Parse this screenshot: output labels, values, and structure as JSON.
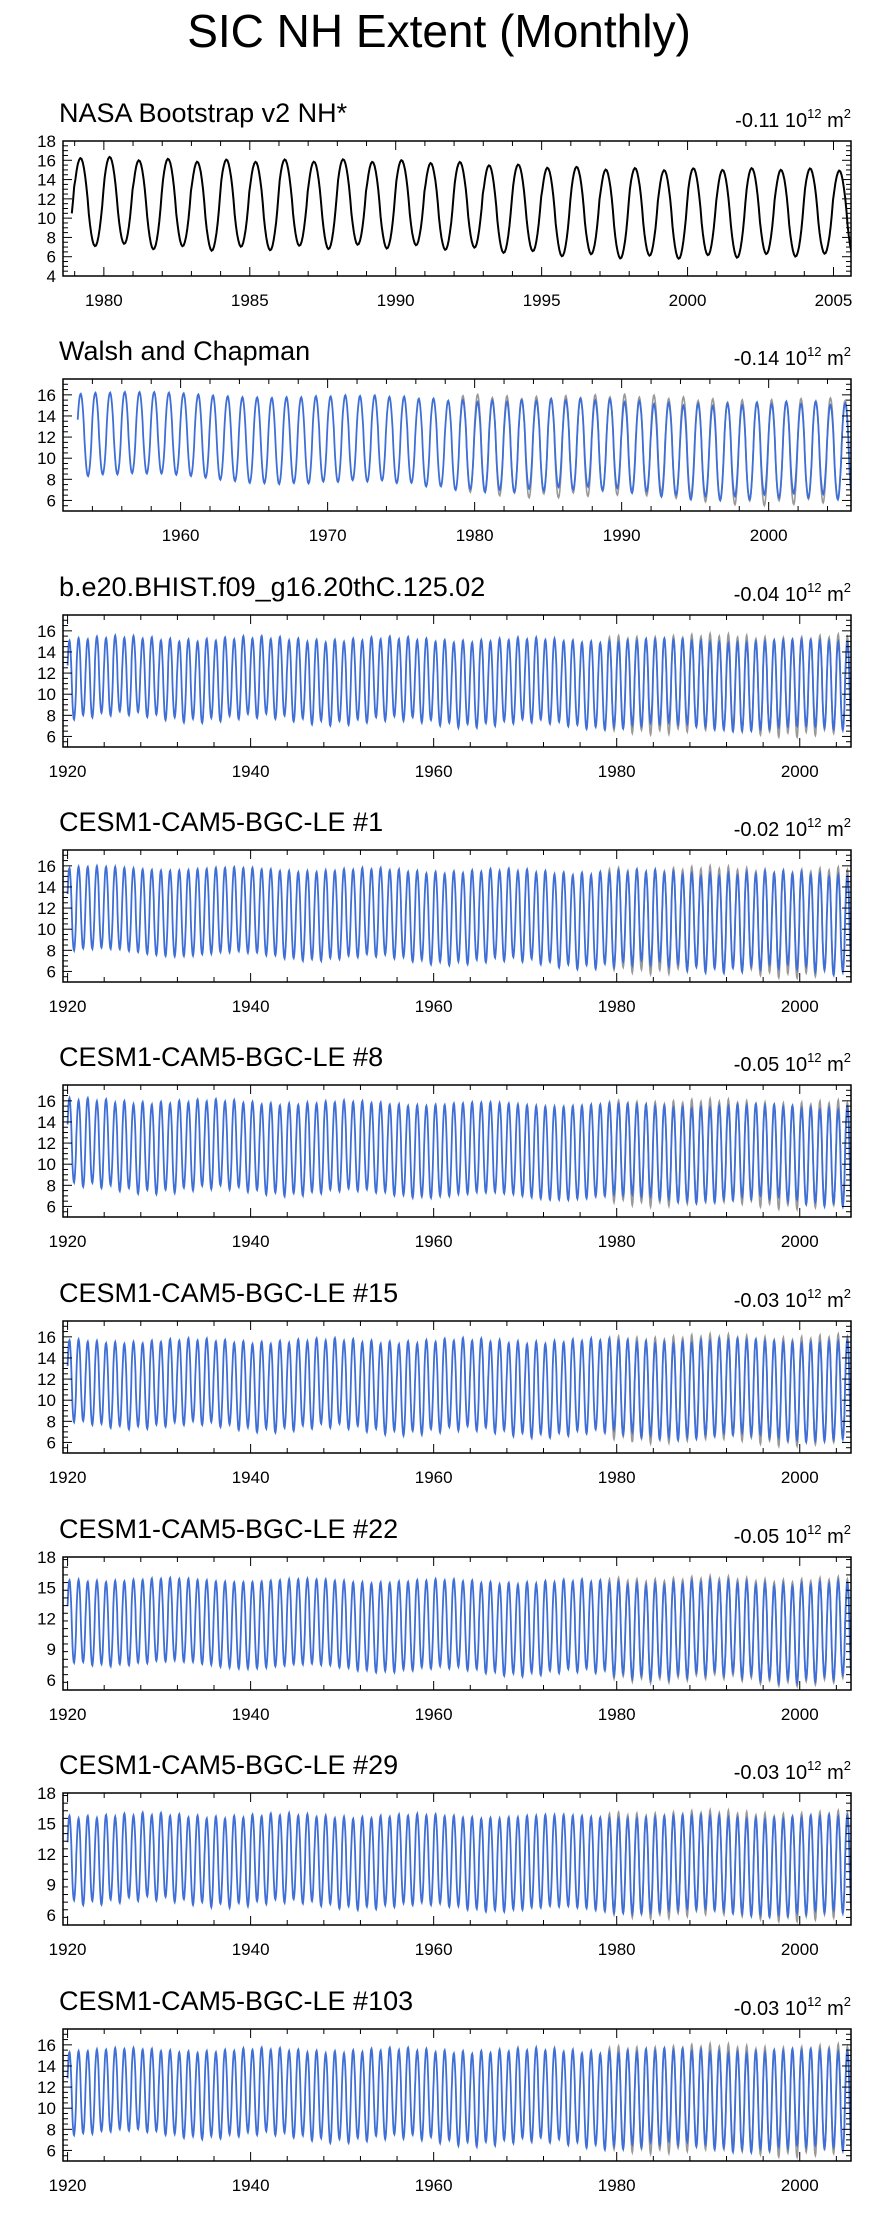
{
  "figure": {
    "title": "SIC NH Extent (Monthly)"
  },
  "style": {
    "model_color": "#3f6fd6",
    "obs_color": "#000000",
    "obs_overlay_color": "#999999"
  },
  "chart_data": [
    {
      "type": "line",
      "title": "NASA Bootstrap v2 NH*",
      "trend": "-0.11 10",
      "trend_exp": "12",
      "trend_unit": " m",
      "trend_unit_exp": "2",
      "xlim": [
        1978.6,
        2005.6
      ],
      "xticks": [
        1980,
        1985,
        1990,
        1995,
        2000,
        2005
      ],
      "ylim": [
        4,
        18
      ],
      "yticks": [
        4,
        6,
        8,
        10,
        12,
        14,
        16,
        18
      ],
      "series": [
        {
          "x_start": 1978.9,
          "x_end": 2005.9,
          "max_start": 16.4,
          "max_end": 14.8,
          "min_start": 7.4,
          "min_end": 5.8,
          "style": "obs"
        }
      ]
    },
    {
      "type": "line",
      "title": "Walsh and Chapman",
      "trend": "-0.14 10",
      "trend_exp": "12",
      "trend_unit": " m",
      "trend_unit_exp": "2",
      "xlim": [
        1952,
        2005.6
      ],
      "xticks": [
        1960,
        1970,
        1980,
        1990,
        2000
      ],
      "ylim": [
        5,
        17.5
      ],
      "yticks": [
        6,
        8,
        10,
        12,
        14,
        16
      ],
      "series": [
        {
          "x_start": 1953,
          "x_end": 2005.9,
          "max_start": 16.2,
          "max_end": 15.0,
          "min_start": 8.5,
          "min_end": 6.0,
          "style": "model",
          "obs_overlay": [
            1979,
            2005.9
          ]
        }
      ]
    },
    {
      "type": "line",
      "title": "b.e20.BHIST.f09_g16.20thC.125.02",
      "trend": "-0.04 10",
      "trend_exp": "12",
      "trend_unit": " m",
      "trend_unit_exp": "2",
      "xlim": [
        1919.5,
        2005.6
      ],
      "xticks": [
        1920,
        1940,
        1960,
        1980,
        2000
      ],
      "ylim": [
        5,
        17.5
      ],
      "yticks": [
        6,
        8,
        10,
        12,
        14,
        16
      ],
      "series": [
        {
          "x_start": 1920,
          "x_end": 2005.9,
          "max_start": 15.3,
          "max_end": 15.0,
          "min_start": 8.0,
          "min_end": 6.6,
          "style": "model",
          "obs_overlay": [
            1979,
            2005.9
          ]
        }
      ]
    },
    {
      "type": "line",
      "title": "CESM1-CAM5-BGC-LE #1",
      "trend": "-0.02 10",
      "trend_exp": "12",
      "trend_unit": " m",
      "trend_unit_exp": "2",
      "xlim": [
        1919.5,
        2005.6
      ],
      "xticks": [
        1920,
        1940,
        1960,
        1980,
        2000
      ],
      "ylim": [
        5,
        17.5
      ],
      "yticks": [
        6,
        8,
        10,
        12,
        14,
        16
      ],
      "series": [
        {
          "x_start": 1920,
          "x_end": 2005.9,
          "max_start": 15.8,
          "max_end": 15.2,
          "min_start": 8.0,
          "min_end": 6.0,
          "style": "model",
          "obs_overlay": [
            1979,
            2005.9
          ]
        }
      ]
    },
    {
      "type": "line",
      "title": "CESM1-CAM5-BGC-LE #8",
      "trend": "-0.05 10",
      "trend_exp": "12",
      "trend_unit": " m",
      "trend_unit_exp": "2",
      "xlim": [
        1919.5,
        2005.6
      ],
      "xticks": [
        1920,
        1940,
        1960,
        1980,
        2000
      ],
      "ylim": [
        5,
        17.5
      ],
      "yticks": [
        6,
        8,
        10,
        12,
        14,
        16
      ],
      "series": [
        {
          "x_start": 1920,
          "x_end": 2005.9,
          "max_start": 16.0,
          "max_end": 15.4,
          "min_start": 7.8,
          "min_end": 6.4,
          "style": "model",
          "obs_overlay": [
            1979,
            2005.9
          ]
        }
      ]
    },
    {
      "type": "line",
      "title": "CESM1-CAM5-BGC-LE #15",
      "trend": "-0.03 10",
      "trend_exp": "12",
      "trend_unit": " m",
      "trend_unit_exp": "2",
      "xlim": [
        1919.5,
        2005.6
      ],
      "xticks": [
        1920,
        1940,
        1960,
        1980,
        2000
      ],
      "ylim": [
        5,
        17.5
      ],
      "yticks": [
        6,
        8,
        10,
        12,
        14,
        16
      ],
      "series": [
        {
          "x_start": 1920,
          "x_end": 2005.9,
          "max_start": 15.6,
          "max_end": 15.6,
          "min_start": 7.8,
          "min_end": 6.3,
          "style": "model",
          "obs_overlay": [
            1979,
            2005.9
          ]
        }
      ]
    },
    {
      "type": "line",
      "title": "CESM1-CAM5-BGC-LE #22",
      "trend": "-0.05 10",
      "trend_exp": "12",
      "trend_unit": " m",
      "trend_unit_exp": "2",
      "xlim": [
        1919.5,
        2005.6
      ],
      "xticks": [
        1920,
        1940,
        1960,
        1980,
        2000
      ],
      "ylim": [
        5,
        18
      ],
      "yticks": [
        6,
        9,
        12,
        15,
        18
      ],
      "series": [
        {
          "x_start": 1920,
          "x_end": 2005.9,
          "max_start": 15.8,
          "max_end": 15.4,
          "min_start": 7.8,
          "min_end": 6.0,
          "style": "model",
          "obs_overlay": [
            1979,
            2005.9
          ]
        }
      ]
    },
    {
      "type": "line",
      "title": "CESM1-CAM5-BGC-LE #29",
      "trend": "-0.03 10",
      "trend_exp": "12",
      "trend_unit": " m",
      "trend_unit_exp": "2",
      "xlim": [
        1919.5,
        2005.6
      ],
      "xticks": [
        1920,
        1940,
        1960,
        1980,
        2000
      ],
      "ylim": [
        5,
        18
      ],
      "yticks": [
        6,
        9,
        12,
        15,
        18
      ],
      "series": [
        {
          "x_start": 1920,
          "x_end": 2005.9,
          "max_start": 15.8,
          "max_end": 15.6,
          "min_start": 7.5,
          "min_end": 6.0,
          "style": "model",
          "obs_overlay": [
            1979,
            2005.9
          ]
        }
      ]
    },
    {
      "type": "line",
      "title": "CESM1-CAM5-BGC-LE #103",
      "trend": "-0.03 10",
      "trend_exp": "12",
      "trend_unit": " m",
      "trend_unit_exp": "2",
      "xlim": [
        1919.5,
        2005.6
      ],
      "xticks": [
        1920,
        1940,
        1960,
        1980,
        2000
      ],
      "ylim": [
        5,
        17.5
      ],
      "yticks": [
        6,
        8,
        10,
        12,
        14,
        16
      ],
      "series": [
        {
          "x_start": 1920,
          "x_end": 2005.9,
          "max_start": 15.5,
          "max_end": 15.4,
          "min_start": 7.8,
          "min_end": 6.0,
          "style": "model",
          "obs_overlay": [
            1979,
            2005.9
          ]
        }
      ]
    }
  ]
}
